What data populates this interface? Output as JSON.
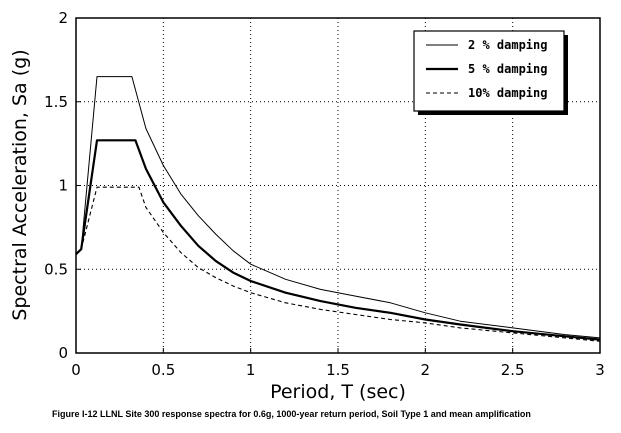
{
  "caption": "Figure I-12  LLNL Site 300 response spectra for 0.6g, 1000-year return period, Soil Type 1 and mean amplification",
  "chart_data": {
    "type": "line",
    "title": "",
    "xlabel": "Period, T (sec)",
    "ylabel": "Spectral Acceleration, Sa (g)",
    "xlim": [
      0,
      3
    ],
    "ylim": [
      0,
      2
    ],
    "xticks": [
      0,
      0.5,
      1,
      1.5,
      2,
      2.5,
      3
    ],
    "xtick_labels": [
      "0",
      "0.5",
      "1",
      "1.5",
      "2",
      "2.5",
      "3"
    ],
    "yticks": [
      0,
      0.5,
      1,
      1.5,
      2
    ],
    "ytick_labels": [
      "0",
      "0.5",
      "1",
      "1.5",
      "2"
    ],
    "grid": "dotted",
    "legend_position": "top-right",
    "series": [
      {
        "name": "2 % damping",
        "style": "thin-solid",
        "color": "#000000",
        "x": [
          0.0,
          0.03,
          0.12,
          0.32,
          0.4,
          0.5,
          0.6,
          0.7,
          0.8,
          0.9,
          1.0,
          1.2,
          1.4,
          1.6,
          1.8,
          2.0,
          2.2,
          2.5,
          2.8,
          3.0
        ],
        "y": [
          0.59,
          0.62,
          1.65,
          1.65,
          1.34,
          1.12,
          0.95,
          0.82,
          0.71,
          0.61,
          0.53,
          0.44,
          0.38,
          0.34,
          0.3,
          0.24,
          0.19,
          0.15,
          0.11,
          0.09
        ]
      },
      {
        "name": "5 % damping",
        "style": "thick-solid",
        "color": "#000000",
        "x": [
          0.0,
          0.03,
          0.12,
          0.34,
          0.4,
          0.5,
          0.6,
          0.7,
          0.8,
          0.9,
          1.0,
          1.2,
          1.4,
          1.6,
          1.8,
          2.0,
          2.2,
          2.5,
          2.8,
          3.0
        ],
        "y": [
          0.59,
          0.62,
          1.27,
          1.27,
          1.1,
          0.9,
          0.76,
          0.64,
          0.55,
          0.48,
          0.43,
          0.36,
          0.31,
          0.27,
          0.24,
          0.2,
          0.17,
          0.13,
          0.1,
          0.08
        ]
      },
      {
        "name": "10% damping",
        "style": "dashed",
        "color": "#000000",
        "x": [
          0.0,
          0.03,
          0.12,
          0.36,
          0.4,
          0.5,
          0.6,
          0.7,
          0.8,
          0.9,
          1.0,
          1.2,
          1.4,
          1.6,
          1.8,
          2.0,
          2.2,
          2.5,
          2.8,
          3.0
        ],
        "y": [
          0.59,
          0.62,
          0.99,
          0.99,
          0.87,
          0.72,
          0.6,
          0.51,
          0.45,
          0.4,
          0.36,
          0.3,
          0.26,
          0.23,
          0.2,
          0.18,
          0.15,
          0.12,
          0.09,
          0.07
        ]
      }
    ]
  }
}
